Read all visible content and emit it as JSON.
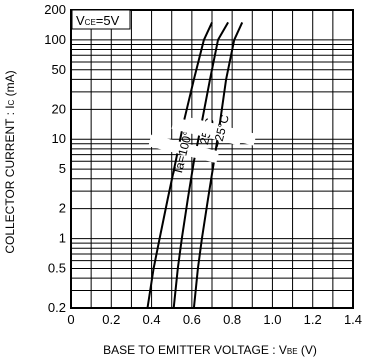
{
  "chart_data": {
    "type": "line",
    "xlabel_main": "BASE TO EMITTER VOLTAGE : V",
    "xlabel_sub": "BE",
    "xlabel_unit": " (V)",
    "ylabel_main": "COLLECTOR CURRENT : I",
    "ylabel_sub": "C",
    "ylabel_unit": " (mA)",
    "condition_main": "V",
    "condition_sub": "CE",
    "condition_value": "=5V",
    "xlim": [
      0,
      1.4
    ],
    "ylim": [
      0.2,
      200
    ],
    "y_scale": "log",
    "grid": true,
    "x_ticks": [
      "0",
      "0.2",
      "0.4",
      "0.6",
      "0.8",
      "1.0",
      "1.2",
      "1.4"
    ],
    "y_ticks": [
      "0.2",
      "0.5",
      "1",
      "2",
      "5",
      "10",
      "20",
      "50",
      "100",
      "200"
    ],
    "series": [
      {
        "name": "Ta=100°C",
        "x": [
          0.38,
          0.41,
          0.44,
          0.48,
          0.52,
          0.56,
          0.61,
          0.66,
          0.7
        ],
        "y": [
          0.2,
          0.5,
          1,
          2.5,
          6,
          15,
          40,
          100,
          150
        ]
      },
      {
        "name": "25°C",
        "x": [
          0.51,
          0.53,
          0.55,
          0.58,
          0.61,
          0.65,
          0.69,
          0.73,
          0.78
        ],
        "y": [
          0.2,
          0.5,
          1,
          2.5,
          6,
          15,
          40,
          100,
          150
        ]
      },
      {
        "name": "−25°C",
        "x": [
          0.61,
          0.63,
          0.65,
          0.68,
          0.71,
          0.74,
          0.77,
          0.81,
          0.85
        ],
        "y": [
          0.2,
          0.5,
          1,
          2.5,
          6,
          15,
          40,
          100,
          150
        ]
      }
    ]
  }
}
